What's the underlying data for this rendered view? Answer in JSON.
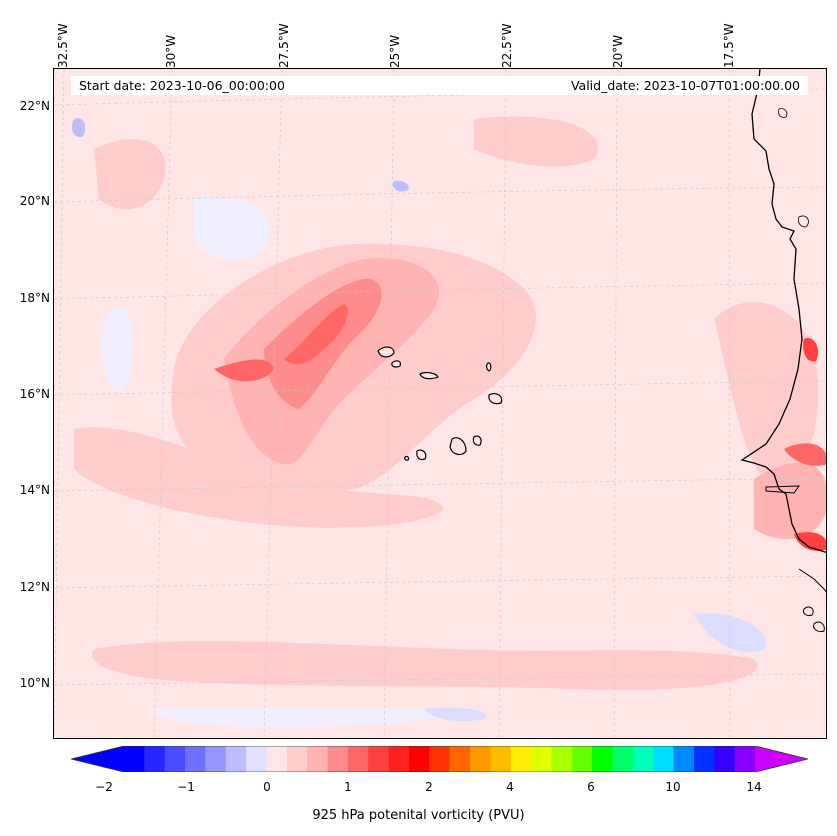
{
  "map": {
    "longitude_labels": [
      "32.5°W",
      "30°W",
      "27.5°W",
      "25°W",
      "22.5°W",
      "20°W",
      "17.5°W"
    ],
    "latitude_labels": [
      "22°N",
      "20°N",
      "18°N",
      "16°N",
      "14°N",
      "12°N",
      "10°N"
    ],
    "start_date": "Start date: 2023-10-06_00:00:00",
    "valid_date": "Valid_date: 2023-10-07T01:00:00.00",
    "extent": {
      "lon_min": -33,
      "lon_max": -15.5,
      "lat_min": 8.9,
      "lat_max": 22.8
    }
  },
  "colorbar": {
    "title": "925 hPa potenital vorticity (PVU)",
    "tick_labels": [
      "−2",
      "−1",
      "0",
      "1",
      "2",
      "4",
      "6",
      "10",
      "14"
    ],
    "colors": [
      "#0000ff",
      "#2525ff",
      "#4b4bff",
      "#7070ff",
      "#9696ff",
      "#bcbcff",
      "#e1e1ff",
      "#ffe6e6",
      "#ffcccc",
      "#ffb3b3",
      "#ff8c8c",
      "#ff6666",
      "#ff4040",
      "#ff2020",
      "#ff0000",
      "#ff3300",
      "#ff6600",
      "#ff9900",
      "#ffbb00",
      "#ffee00",
      "#ddff00",
      "#aaff00",
      "#66ff00",
      "#00ff00",
      "#00ff66",
      "#00ffbb",
      "#00ddff",
      "#0088ff",
      "#0033ff",
      "#3300ff",
      "#8800ff"
    ],
    "extend_min_color": "#0000ff",
    "extend_max_color": "#cc00ff"
  }
}
